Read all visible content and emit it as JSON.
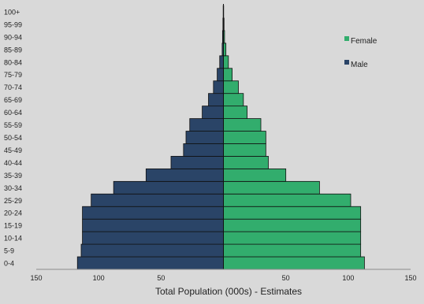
{
  "chart_data": {
    "type": "bar",
    "subtype": "population-pyramid",
    "title": "",
    "xlabel": "Total Population (000s) - Estimates",
    "ylabel": "",
    "xlim": [
      -150,
      150
    ],
    "x_ticks": [
      -150,
      -100,
      -50,
      50,
      100,
      150
    ],
    "x_tick_labels": [
      "150",
      "100",
      "50",
      "50",
      "100",
      "150"
    ],
    "categories": [
      "0-4",
      "5-9",
      "10-14",
      "15-19",
      "20-24",
      "25-29",
      "30-34",
      "35-39",
      "40-44",
      "45-49",
      "50-54",
      "55-59",
      "60-64",
      "65-69",
      "70-74",
      "75-79",
      "80-84",
      "85-89",
      "90-94",
      "95-99",
      "100+"
    ],
    "series": [
      {
        "name": "Male",
        "color": "#2a4467",
        "values": [
          117,
          114,
          113,
          113,
          113,
          106,
          88,
          62,
          42,
          32,
          30,
          27,
          17,
          12,
          8,
          5,
          3,
          1,
          0.7,
          0.4,
          0.2
        ]
      },
      {
        "name": "Female",
        "color": "#32ad6d",
        "values": [
          113,
          110,
          110,
          110,
          110,
          102,
          77,
          50,
          36,
          34,
          34,
          30,
          19,
          16,
          12,
          7,
          4,
          2,
          0.9,
          0.5,
          0.2
        ]
      }
    ],
    "legend": {
      "position": "top-right",
      "order": [
        "Female",
        "Male"
      ]
    },
    "grid": false,
    "axis_color": "#8c8c8c"
  }
}
